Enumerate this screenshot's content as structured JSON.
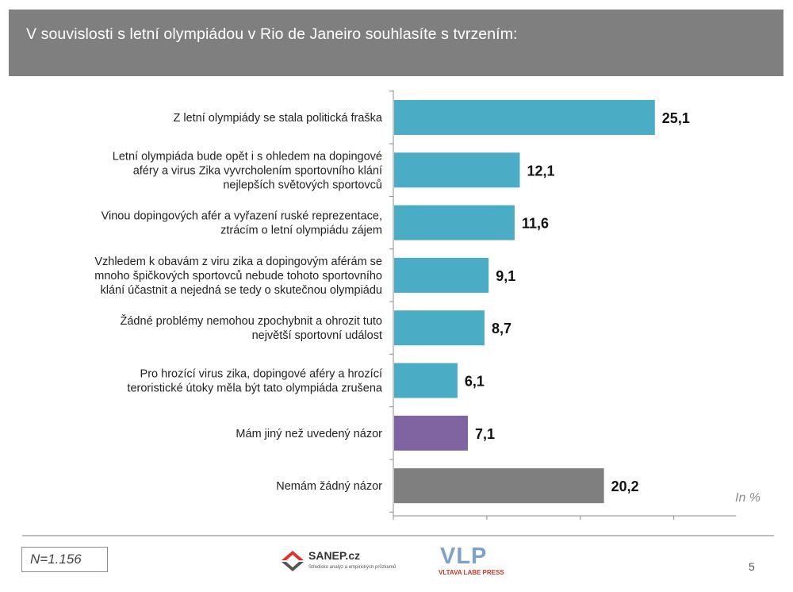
{
  "header": {
    "title": "V souvislosti s letní olympiádou v Rio de Janeiro souhlasíte s tvrzením:"
  },
  "colors": {
    "header_bg": "#7f7f7f",
    "bar_default": "#4bacc6",
    "bar_other": "#8064a2",
    "bar_none": "#7f7f7f"
  },
  "chart_data": {
    "type": "bar",
    "orientation": "horizontal",
    "unit_label": "In %",
    "xlim": [
      0,
      30
    ],
    "grid": false,
    "categories": [
      [
        "Z letní olympiády se stala politická fraška"
      ],
      [
        "Letní olympiáda bude opět i s ohledem na dopingové",
        "aféry a virus Zika vyvrcholením sportovního klání",
        "nejlepších světových sportovců"
      ],
      [
        "Vinou dopingových afér a vyřazení ruské reprezentace,",
        "ztrácím o letní olympiádu zájem"
      ],
      [
        "Vzhledem k obavám z viru zika a dopingovým aférám se",
        "mnoho špičkových sportovců nebude tohoto sportovního",
        "klání účastnit a nejedná se tedy o skutečnou olympiádu"
      ],
      [
        "Žádné problémy nemohou zpochybnit a ohrozit tuto",
        "největší sportovní událost"
      ],
      [
        "Pro hrozící virus zika, dopingové aféry a hrozící",
        "teroristické útoky měla být tato olympiáda zrušena"
      ],
      [
        "Mám jiný než uvedený názor"
      ],
      [
        "Nemám žádný názor"
      ]
    ],
    "values": [
      25.1,
      12.1,
      11.6,
      9.1,
      8.7,
      6.1,
      7.1,
      20.2
    ],
    "value_labels": [
      "25,1",
      "12,1",
      "11,6",
      "9,1",
      "8,7",
      "6,1",
      "7,1",
      "20,2"
    ],
    "bar_colors": [
      "#4bacc6",
      "#4bacc6",
      "#4bacc6",
      "#4bacc6",
      "#4bacc6",
      "#4bacc6",
      "#8064a2",
      "#7f7f7f"
    ]
  },
  "footer": {
    "sample": "N=1.156",
    "sanep_name": "SANEP.cz",
    "sanep_tagline": "Středisko analýz a empirických průzkumů",
    "vlp_name": "VLP",
    "vlp_sub": "VLTAVA LABE PRESS",
    "page_number": "5"
  }
}
